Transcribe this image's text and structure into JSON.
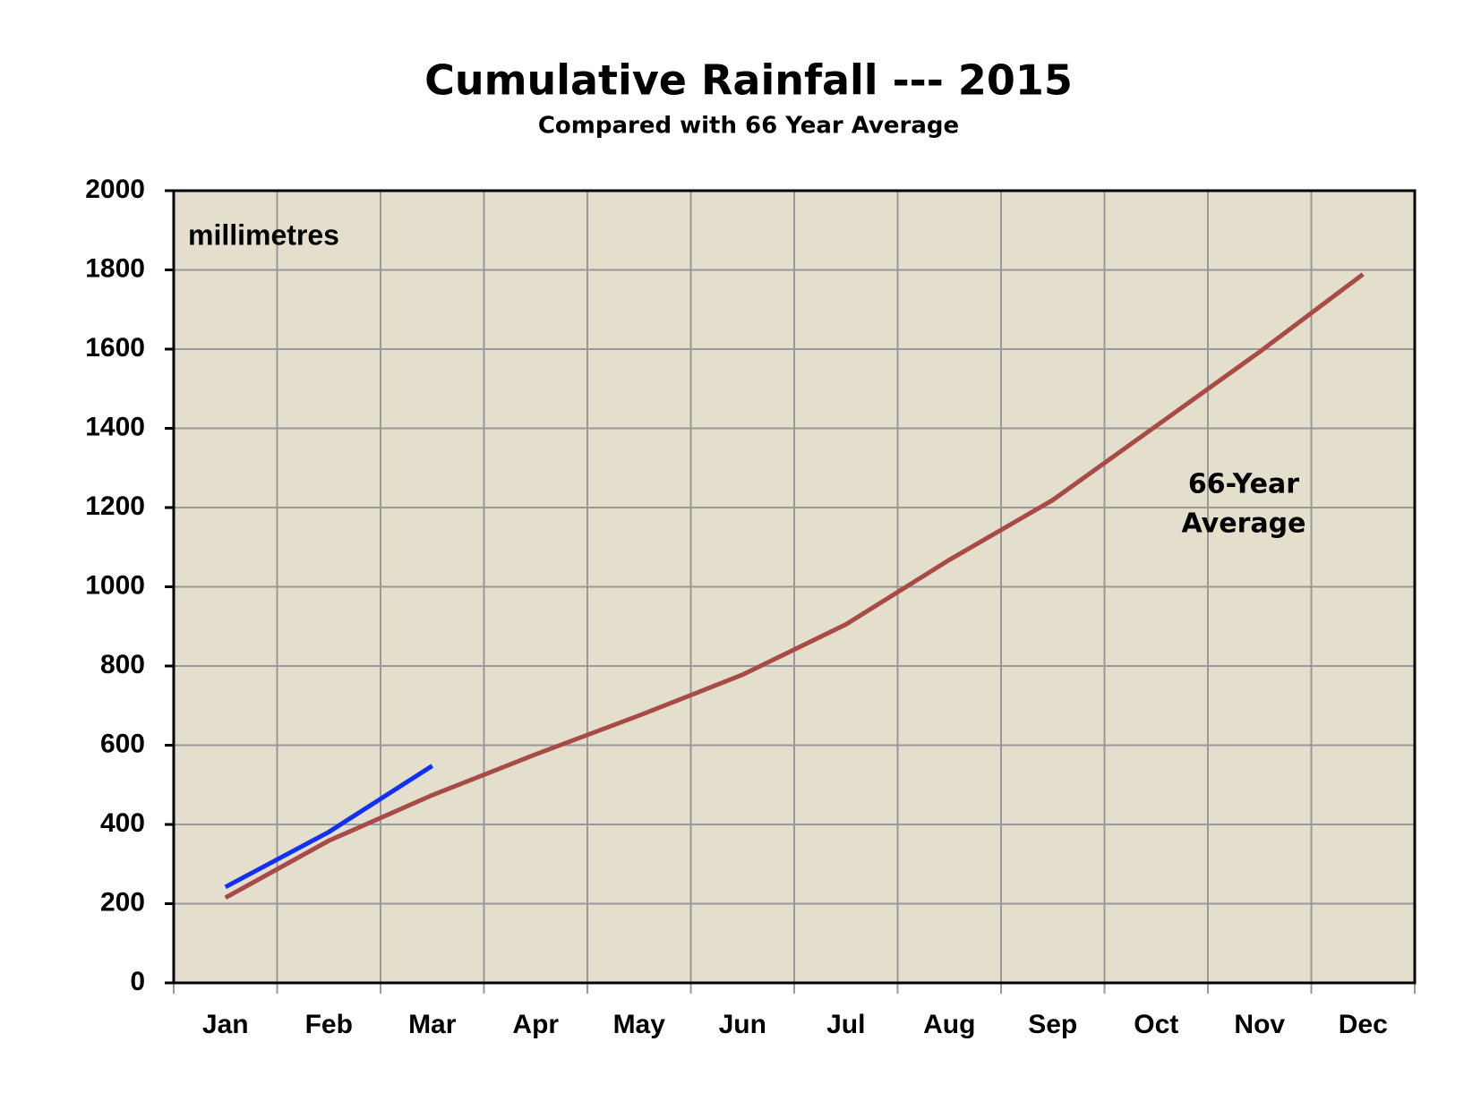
{
  "chart_data": {
    "type": "line",
    "title": "Cumulative Rainfall --- 2015",
    "subtitle": "Compared with 66 Year Average",
    "annotations": [
      "millimetres",
      "66-Year",
      "Average"
    ],
    "categories": [
      "Jan",
      "Feb",
      "Mar",
      "Apr",
      "May",
      "Jun",
      "Jul",
      "Aug",
      "Sep",
      "Oct",
      "Nov",
      "Dec"
    ],
    "series": [
      {
        "color": "#a84a45",
        "values": [
          215,
          359,
          474,
          577,
          675,
          778,
          905,
          1068,
          1219,
          1406,
          1593,
          1789
        ]
      },
      {
        "color": "#1230f0",
        "values": [
          242,
          381,
          548,
          null,
          null,
          null,
          null,
          null,
          null,
          null,
          null,
          null
        ]
      }
    ],
    "ylim": [
      0,
      2000
    ],
    "yticks": [
      0,
      200,
      400,
      600,
      800,
      1000,
      1200,
      1400,
      1600,
      1800,
      2000
    ],
    "grid": true,
    "plot_background": "#e3dfcc"
  }
}
